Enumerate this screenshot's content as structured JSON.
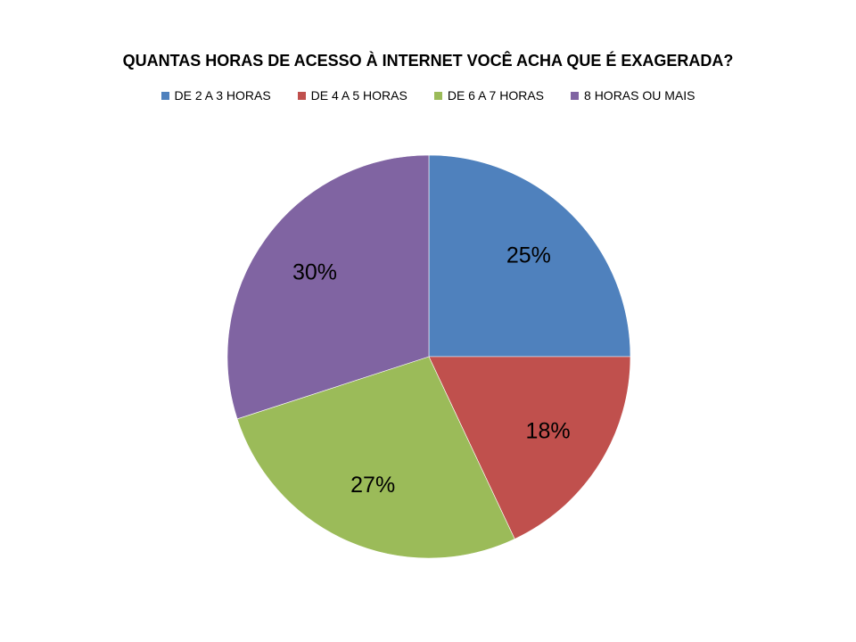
{
  "chart_data": {
    "type": "pie",
    "title": "QUANTAS HORAS DE ACESSO À INTERNET VOCÊ ACHA QUE É EXAGERADA?",
    "legend_position": "top",
    "categories": [
      "DE 2 A 3 HORAS",
      "DE 4 A 5 HORAS",
      "DE 6 A 7 HORAS",
      "8 HORAS OU MAIS"
    ],
    "values": [
      25,
      18,
      27,
      30
    ],
    "labels": [
      "25%",
      "18%",
      "27%",
      "30%"
    ],
    "colors": [
      "#4F81BD",
      "#C0504D",
      "#9BBB59",
      "#8064A2"
    ]
  }
}
